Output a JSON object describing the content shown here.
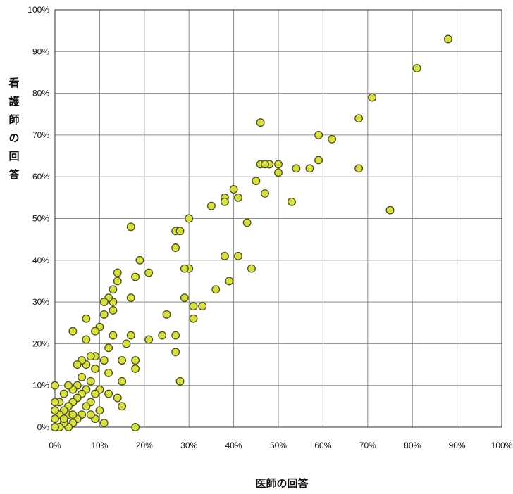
{
  "chart_data": {
    "type": "scatter",
    "title": "",
    "xlabel": "医師の回答",
    "ylabel": [
      "看",
      "護",
      "師",
      "の",
      "回",
      "答"
    ],
    "xlim": [
      0,
      100
    ],
    "ylim": [
      0,
      100
    ],
    "grid": true,
    "x_ticks": [
      "0%",
      "10%",
      "20%",
      "30%",
      "40%",
      "50%",
      "60%",
      "70%",
      "80%",
      "90%",
      "100%"
    ],
    "y_ticks": [
      "0%",
      "10%",
      "20%",
      "30%",
      "40%",
      "50%",
      "60%",
      "70%",
      "80%",
      "90%",
      "100%"
    ],
    "marker_color": "#d8df45",
    "marker_edge": "#4b4f12",
    "points": [
      [
        88,
        93
      ],
      [
        81,
        86
      ],
      [
        71,
        79
      ],
      [
        68,
        74
      ],
      [
        68,
        62
      ],
      [
        75,
        52
      ],
      [
        59,
        70
      ],
      [
        62,
        69
      ],
      [
        59,
        64
      ],
      [
        57,
        62
      ],
      [
        54,
        62
      ],
      [
        53,
        54
      ],
      [
        50,
        63
      ],
      [
        48,
        63
      ],
      [
        46,
        63
      ],
      [
        47,
        63
      ],
      [
        45,
        59
      ],
      [
        47,
        56
      ],
      [
        46,
        73
      ],
      [
        50,
        61
      ],
      [
        44,
        38
      ],
      [
        43,
        49
      ],
      [
        41,
        55
      ],
      [
        40,
        57
      ],
      [
        41,
        41
      ],
      [
        39,
        35
      ],
      [
        38,
        55
      ],
      [
        38,
        54
      ],
      [
        38,
        41
      ],
      [
        35,
        53
      ],
      [
        36,
        33
      ],
      [
        33,
        29
      ],
      [
        31,
        29
      ],
      [
        31,
        26
      ],
      [
        30,
        50
      ],
      [
        30,
        38
      ],
      [
        29,
        38
      ],
      [
        29,
        31
      ],
      [
        28,
        11
      ],
      [
        27,
        47
      ],
      [
        28,
        47
      ],
      [
        27,
        43
      ],
      [
        27,
        22
      ],
      [
        27,
        18
      ],
      [
        25,
        27
      ],
      [
        24,
        22
      ],
      [
        21,
        37
      ],
      [
        21,
        21
      ],
      [
        19,
        40
      ],
      [
        18,
        36
      ],
      [
        18,
        16
      ],
      [
        18,
        14
      ],
      [
        18,
        0
      ],
      [
        17,
        48
      ],
      [
        17,
        31
      ],
      [
        17,
        22
      ],
      [
        16,
        20
      ],
      [
        15,
        16
      ],
      [
        15,
        11
      ],
      [
        15,
        5
      ],
      [
        14,
        37
      ],
      [
        14,
        35
      ],
      [
        14,
        7
      ],
      [
        13,
        33
      ],
      [
        13,
        30
      ],
      [
        13,
        28
      ],
      [
        13,
        22
      ],
      [
        12,
        31
      ],
      [
        12,
        19
      ],
      [
        12,
        13
      ],
      [
        12,
        8
      ],
      [
        11,
        30
      ],
      [
        11,
        27
      ],
      [
        11,
        16
      ],
      [
        10,
        24
      ],
      [
        10,
        9
      ],
      [
        10,
        4
      ],
      [
        9,
        23
      ],
      [
        9,
        17
      ],
      [
        9,
        14
      ],
      [
        9,
        8
      ],
      [
        9,
        2
      ],
      [
        8,
        17
      ],
      [
        8,
        11
      ],
      [
        8,
        6
      ],
      [
        7,
        26
      ],
      [
        7,
        21
      ],
      [
        7,
        15
      ],
      [
        7,
        9
      ],
      [
        7,
        5
      ],
      [
        6,
        16
      ],
      [
        6,
        12
      ],
      [
        6,
        8
      ],
      [
        6,
        3
      ],
      [
        5,
        15
      ],
      [
        5,
        10
      ],
      [
        5,
        7
      ],
      [
        5,
        2
      ],
      [
        4,
        23
      ],
      [
        4,
        9
      ],
      [
        4,
        6
      ],
      [
        4,
        1
      ],
      [
        3,
        10
      ],
      [
        3,
        5
      ],
      [
        3,
        3
      ],
      [
        3,
        0
      ],
      [
        2,
        8
      ],
      [
        2,
        4
      ],
      [
        2,
        1
      ],
      [
        1,
        6
      ],
      [
        1,
        3
      ],
      [
        1,
        0
      ],
      [
        0,
        10
      ],
      [
        0,
        6
      ],
      [
        0,
        4
      ],
      [
        0,
        2
      ],
      [
        0,
        0
      ],
      [
        2,
        2
      ],
      [
        8,
        3
      ],
      [
        11,
        1
      ],
      [
        4,
        3
      ]
    ]
  }
}
